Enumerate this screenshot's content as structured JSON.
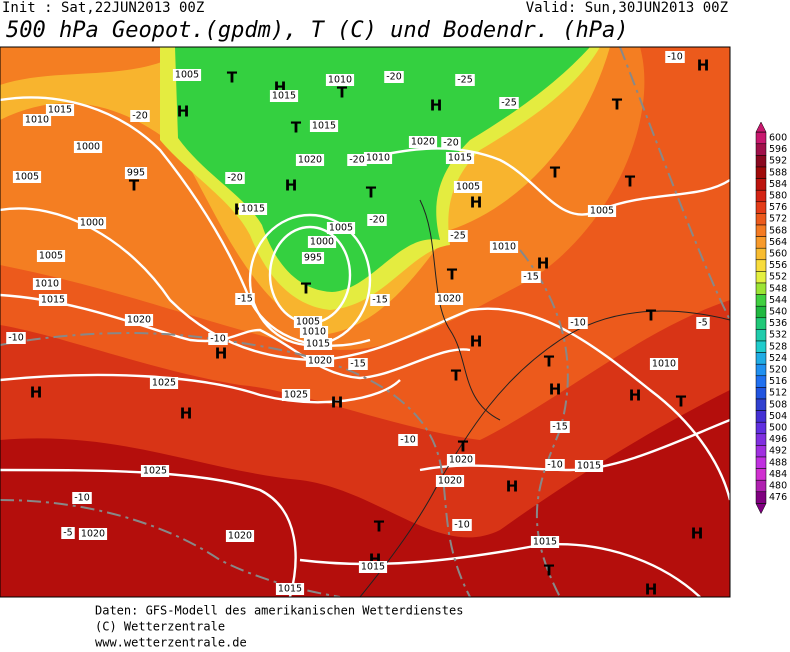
{
  "header": {
    "init": "Init : Sat,22JUN2013 00Z",
    "valid": "Valid: Sun,30JUN2013 00Z",
    "title": "500 hPa Geopot.(gpdm), T (C) und Bodendr. (hPa)"
  },
  "map": {
    "pressure_centers": [
      "H",
      "T",
      "H",
      "T",
      "T",
      "H",
      "T",
      "H",
      "T",
      "H",
      "H",
      "T",
      "T",
      "T",
      "H",
      "T",
      "T",
      "H",
      "T",
      "H",
      "H",
      "H",
      "H",
      "H",
      "T",
      "T",
      "H",
      "H",
      "T",
      "T",
      "H",
      "T",
      "H",
      "T",
      "H",
      "H"
    ],
    "isobar_labels": [
      "1005",
      "1010",
      "1015",
      "1015",
      "1010",
      "1000",
      "995",
      "1005",
      "1000",
      "1005",
      "1010",
      "1015",
      "1020",
      "1025",
      "1025",
      "1025",
      "1020",
      "1020",
      "1015",
      "1020",
      "1010",
      "1015",
      "1020",
      "1015",
      "1005",
      "1015",
      "1005",
      "1000",
      "995",
      "1005",
      "1010",
      "1015",
      "1020",
      "1020",
      "1010",
      "1005",
      "1010",
      "1015",
      "1020",
      "1020",
      "1015",
      "1015"
    ],
    "temperature_labels": [
      "-20",
      "-20",
      "-15",
      "-10",
      "-10",
      "-15",
      "-15",
      "-10",
      "-10",
      "-5",
      "-10",
      "-10",
      "-10",
      "-5",
      "-15",
      "-20",
      "-25",
      "-25",
      "-20",
      "-25",
      "-15",
      "-10",
      "-20",
      "-20"
    ]
  },
  "colorbar": {
    "levels": [
      600,
      596,
      592,
      588,
      584,
      580,
      576,
      572,
      568,
      564,
      560,
      556,
      552,
      548,
      544,
      540,
      536,
      532,
      528,
      524,
      520,
      516,
      512,
      508,
      504,
      500,
      496,
      492,
      488,
      484,
      480,
      476
    ],
    "colors": [
      "#c8186e",
      "#a0104a",
      "#8a0820",
      "#a00a0a",
      "#bc140e",
      "#d42414",
      "#e43c18",
      "#ec5a1c",
      "#f47a22",
      "#f89a2a",
      "#f8bc30",
      "#f8dc3c",
      "#e4f040",
      "#9ce434",
      "#40d040",
      "#20b840",
      "#20c878",
      "#20ccac",
      "#20cccc",
      "#20ace4",
      "#2090f0",
      "#2070f0",
      "#2054e0",
      "#3040d0",
      "#4430d4",
      "#6030e0",
      "#8030e0",
      "#a030e0",
      "#c030e0",
      "#d030d0",
      "#b020b0",
      "#800080"
    ]
  },
  "footer": {
    "source": "Daten: GFS-Modell des amerikanischen Wetterdienstes",
    "copyright": "(C) Wetterzentrale",
    "url": "www.wetterzentrale.de"
  }
}
